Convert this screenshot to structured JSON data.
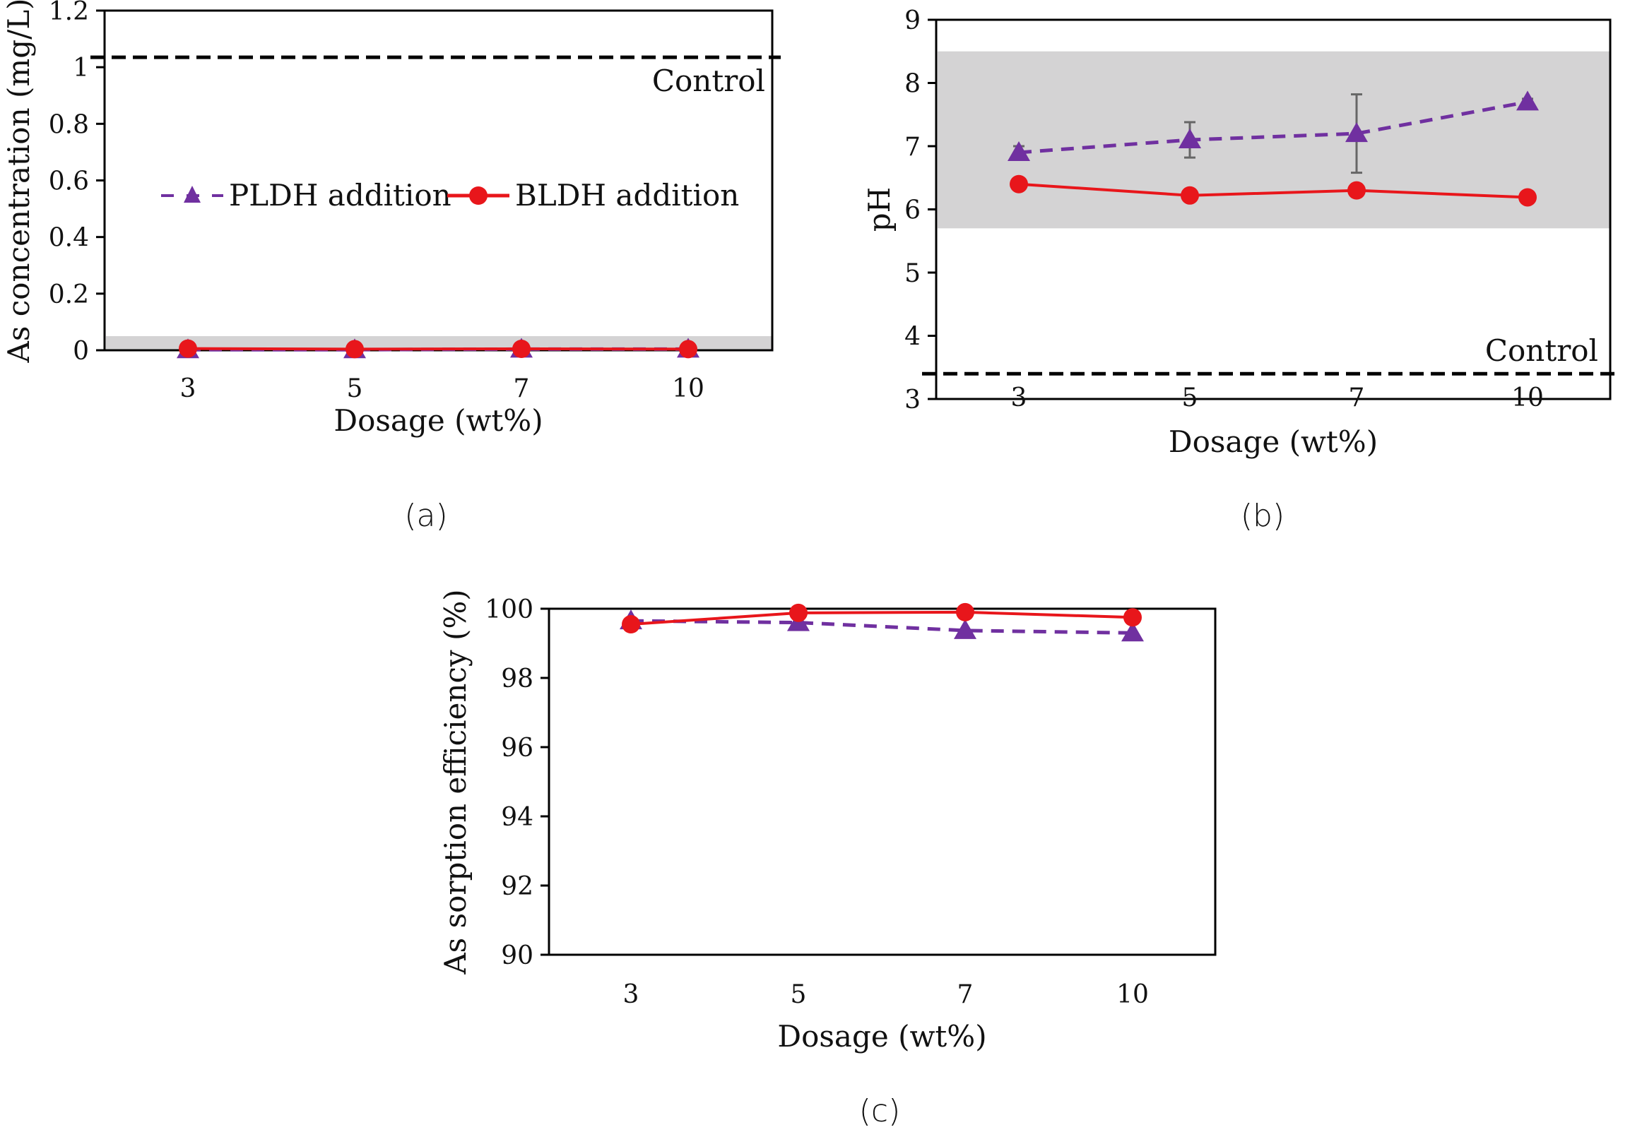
{
  "chart_data": [
    {
      "type": "line",
      "panel_label": "(a)",
      "title": "",
      "xlabel": "Dosage (wt%)",
      "ylabel": "As concentration (mg/L)",
      "categories": [
        "3",
        "5",
        "7",
        "10"
      ],
      "ylim": [
        0,
        1.2
      ],
      "yticks": [
        "0",
        "0.2",
        "0.4",
        "0.6",
        "0.8",
        "1",
        "1.2"
      ],
      "ytick_values": [
        0,
        0.2,
        0.4,
        0.6,
        0.8,
        1.0,
        1.2
      ],
      "shaded_band": [
        0,
        0.05
      ],
      "reference_line": {
        "label": "Control",
        "value": 1.035
      },
      "legend": {
        "position": "center",
        "entries": [
          "PLDH addition",
          "BLDH addition"
        ]
      },
      "series": [
        {
          "name": "PLDH addition",
          "marker": "triangle",
          "style": "dashed",
          "color": "#7030a0",
          "values": [
            0.002,
            0.002,
            0.004,
            0.004
          ]
        },
        {
          "name": "BLDH addition",
          "marker": "circle",
          "style": "solid",
          "color": "#e8161b",
          "values": [
            0.006,
            0.004,
            0.005,
            0.004
          ]
        }
      ]
    },
    {
      "type": "line",
      "panel_label": "(b)",
      "title": "",
      "xlabel": "Dosage (wt%)",
      "ylabel": "pH",
      "categories": [
        "3",
        "5",
        "7",
        "10"
      ],
      "ylim": [
        3,
        9
      ],
      "yticks": [
        "3",
        "4",
        "5",
        "6",
        "7",
        "8",
        "9"
      ],
      "ytick_values": [
        3,
        4,
        5,
        6,
        7,
        8,
        9
      ],
      "shaded_band": [
        5.7,
        8.5
      ],
      "reference_line": {
        "label": "Control",
        "value": 3.4
      },
      "series": [
        {
          "name": "PLDH addition",
          "marker": "triangle",
          "style": "dashed",
          "color": "#7030a0",
          "values": [
            6.9,
            7.1,
            7.2,
            7.7
          ],
          "errors": [
            0.1,
            0.28,
            0.62,
            0.05
          ]
        },
        {
          "name": "BLDH addition",
          "marker": "circle",
          "style": "solid",
          "color": "#e8161b",
          "values": [
            6.4,
            6.22,
            6.3,
            6.19
          ]
        }
      ]
    },
    {
      "type": "line",
      "panel_label": "(c)",
      "title": "",
      "xlabel": "Dosage (wt%)",
      "ylabel": "As sorption efficiency (%)",
      "categories": [
        "3",
        "5",
        "7",
        "10"
      ],
      "ylim": [
        90,
        100
      ],
      "yticks": [
        "90",
        "92",
        "94",
        "96",
        "98",
        "100"
      ],
      "ytick_values": [
        90,
        92,
        94,
        96,
        98,
        100
      ],
      "series": [
        {
          "name": "PLDH addition",
          "marker": "triangle",
          "style": "dashed",
          "color": "#7030a0",
          "values": [
            99.65,
            99.6,
            99.37,
            99.3
          ]
        },
        {
          "name": "BLDH addition",
          "marker": "circle",
          "style": "solid",
          "color": "#e8161b",
          "values": [
            99.55,
            99.88,
            99.9,
            99.75
          ]
        }
      ]
    }
  ]
}
